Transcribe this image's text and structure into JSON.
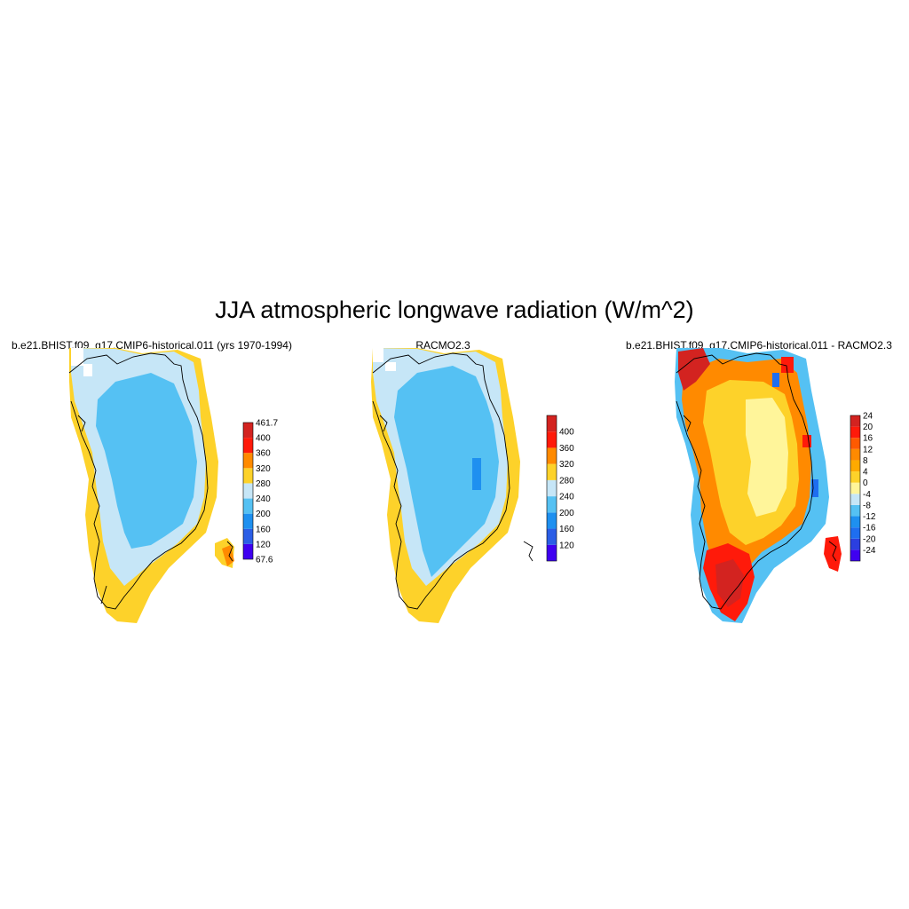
{
  "title": "JJA atmospheric longwave radiation (W/m^2)",
  "panels": [
    {
      "title": "b.e21.BHIST.f09_g17.CMIP6-historical.011 (yrs 1970-1994)",
      "colorbar": {
        "colors": [
          "#3f00f0",
          "#2b5ee6",
          "#1e90f0",
          "#55c1f3",
          "#c6e6f7",
          "#fdd22a",
          "#ff8a00",
          "#ff1a0a",
          "#d32320"
        ],
        "labels": [
          "67.6",
          "120",
          "160",
          "200",
          "240",
          "280",
          "320",
          "360",
          "400",
          "461.7"
        ],
        "end_labels": true
      },
      "map_colors": {
        "interior": "#55c1f3",
        "mid": "#c6e6f7",
        "edge": "#fdd22a",
        "hot": "#ff8a00"
      }
    },
    {
      "title": "RACMO2.3",
      "colorbar": {
        "colors": [
          "#3f00f0",
          "#2b5ee6",
          "#1e90f0",
          "#55c1f3",
          "#c6e6f7",
          "#fdd22a",
          "#ff8a00",
          "#ff1a0a",
          "#d32320"
        ],
        "labels": [
          "120",
          "160",
          "200",
          "240",
          "280",
          "320",
          "360",
          "400"
        ],
        "end_labels": false
      },
      "map_colors": {
        "interior": "#55c1f3",
        "mid": "#c6e6f7",
        "edge": "#fdd22a",
        "patch": "#1e90f0"
      }
    },
    {
      "title": "b.e21.BHIST.f09_g17.CMIP6-historical.011 - RACMO2.3",
      "colorbar": {
        "colors": [
          "#3f00f0",
          "#2b3fe0",
          "#1e6ef0",
          "#1e90f0",
          "#55c1f3",
          "#c6e6f7",
          "#fff59a",
          "#fdd22a",
          "#ffaa00",
          "#ff8a00",
          "#ff5a00",
          "#ff1a0a",
          "#d32320"
        ],
        "labels": [
          "-24",
          "-20",
          "-16",
          "-12",
          "-8",
          "-4",
          "0",
          "4",
          "8",
          "12",
          "16",
          "20",
          "24"
        ],
        "end_labels": false
      },
      "map_colors": {
        "interior": "#fdd22a",
        "core": "#fff59a",
        "warm": "#ffaa00",
        "orange": "#ff8a00",
        "red": "#ff1a0a",
        "darkred": "#d32320",
        "blue": "#55c1f3",
        "darkblue": "#1e6ef0"
      }
    }
  ]
}
